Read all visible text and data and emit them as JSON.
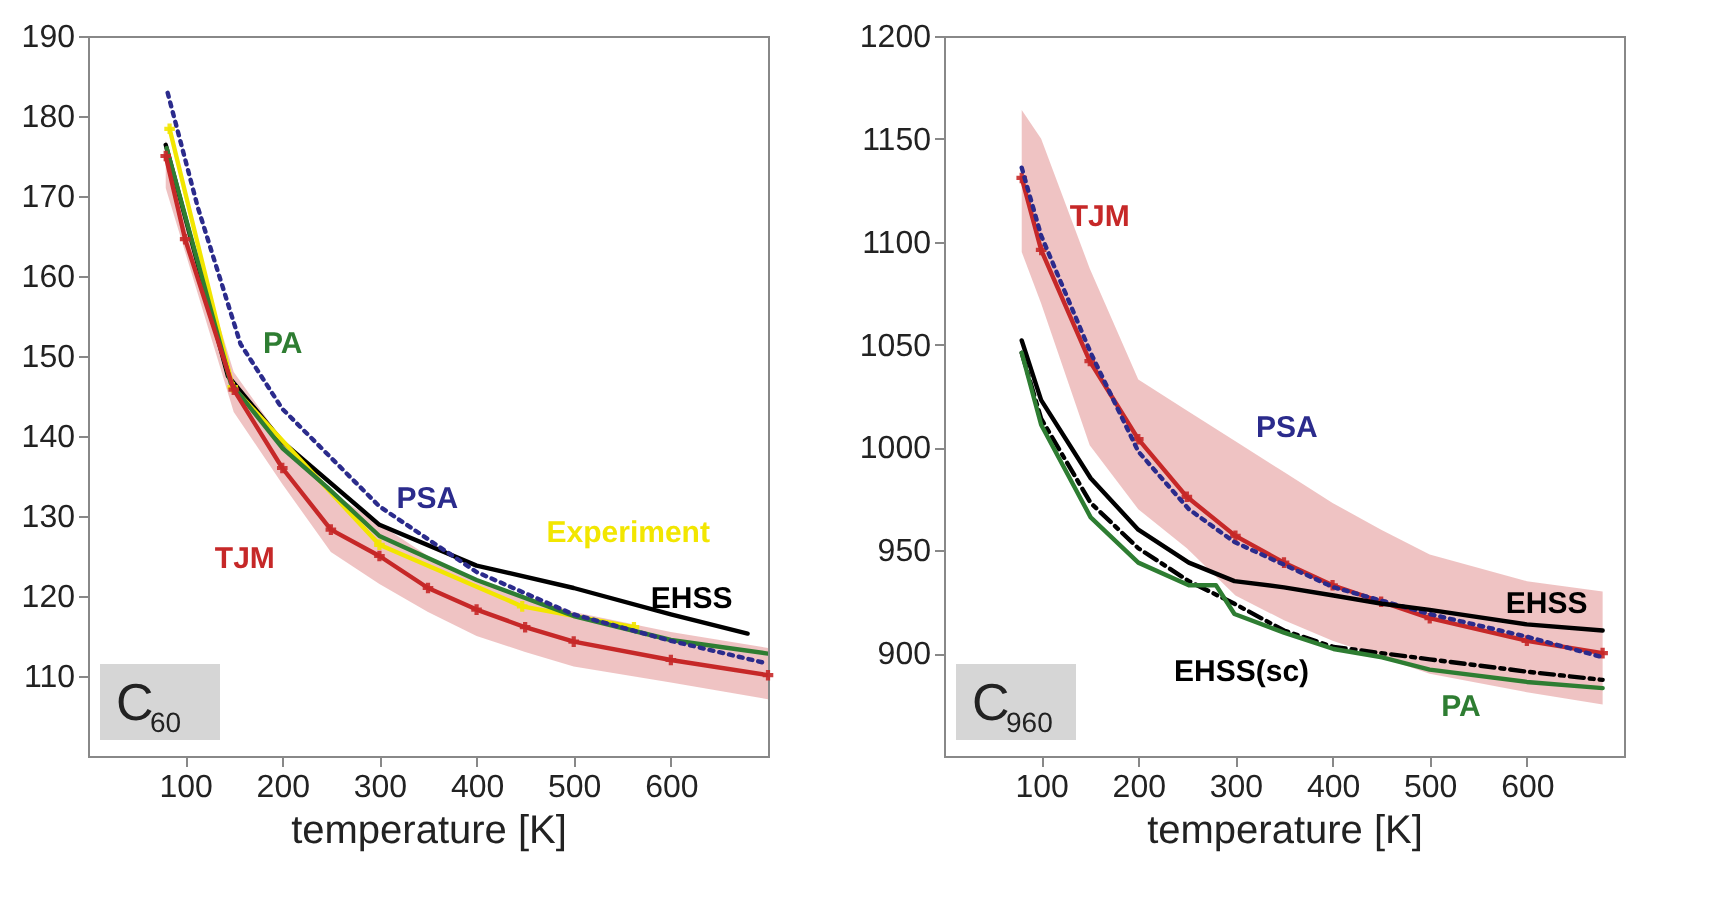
{
  "chart_data": [
    {
      "type": "line",
      "xlabel": "temperature [K]",
      "xlim": [
        0,
        700
      ],
      "xticks": [
        100,
        200,
        300,
        400,
        500,
        600
      ],
      "ylim": [
        100,
        190
      ],
      "yticks": [
        110,
        120,
        130,
        140,
        150,
        160,
        170,
        180,
        190
      ],
      "annotations": [
        "C$_{60}$"
      ],
      "series": [
        {
          "name": "EHSS",
          "color": "#000000",
          "x": [
            80,
            144,
            200,
            300,
            400,
            500,
            600,
            679
          ],
          "values": [
            176.4,
            147.5,
            139.3,
            128.9,
            123.8,
            121,
            117.7,
            115.3
          ]
        },
        {
          "name": "Experiment",
          "color": "#f2e600",
          "marker": "cross",
          "x": [
            84,
            149,
            300,
            447,
            562
          ],
          "values": [
            178.4,
            146.1,
            126.4,
            118.7,
            116.1
          ]
        },
        {
          "name": "PA",
          "color": "#2e7d32",
          "x": [
            81,
            147,
            200,
            246,
            300,
            400,
            500,
            600,
            700
          ],
          "values": [
            176,
            146.6,
            138.5,
            133.6,
            127.5,
            122,
            117.5,
            114.5,
            112.8
          ]
        },
        {
          "name": "PSA",
          "color": "#2b2b8c",
          "line_style": "dotted",
          "x": [
            82,
            113,
            157,
            200,
            300,
            400,
            500,
            600,
            698
          ],
          "values": [
            182.9,
            168.6,
            151.5,
            143.4,
            131.2,
            123,
            117.7,
            114.4,
            111.6
          ]
        },
        {
          "name": "TJM",
          "color": "#c62828",
          "marker": "cross",
          "x": [
            80,
            100,
            150,
            200,
            250,
            300,
            350,
            400,
            450,
            500,
            600,
            700
          ],
          "values": [
            175,
            164.6,
            145.8,
            136,
            128.3,
            125,
            121,
            118.3,
            116.1,
            114.3,
            112,
            110.1
          ],
          "lower": [
            171,
            163,
            143,
            134,
            125.5,
            121.5,
            118,
            115,
            113,
            111.2,
            109.2,
            107.1
          ],
          "upper": [
            177,
            168,
            148,
            139.5,
            133,
            129,
            125,
            122,
            120,
            118,
            115.5,
            113.5
          ]
        }
      ]
    },
    {
      "type": "line",
      "xlabel": "temperature [K]",
      "xlim": [
        0,
        700
      ],
      "xticks": [
        100,
        200,
        300,
        400,
        500,
        600
      ],
      "ylim": [
        850,
        1200
      ],
      "yticks": [
        900,
        950,
        1000,
        1050,
        1100,
        1150,
        1200
      ],
      "annotations": [
        "C$_{960}$"
      ],
      "series": [
        {
          "name": "TJM",
          "color": "#c62828",
          "marker": "cross",
          "x": [
            80,
            100,
            150,
            200,
            250,
            300,
            350,
            400,
            450,
            500,
            600,
            678
          ],
          "values": [
            1131,
            1096,
            1042,
            1004,
            976,
            957,
            944,
            933,
            925,
            917,
            906,
            900
          ],
          "lower": [
            1095,
            1070,
            1001,
            970,
            951,
            928,
            916,
            906,
            898,
            890,
            881,
            875
          ],
          "upper": [
            1164,
            1150,
            1087,
            1033,
            1018,
            1003,
            988,
            973,
            960,
            948,
            935,
            930
          ]
        },
        {
          "name": "PSA",
          "color": "#2b2b8c",
          "line_style": "dotted",
          "x": [
            80,
            100,
            151,
            200,
            252,
            299,
            401,
            500,
            600,
            678
          ],
          "values": [
            1136,
            1103,
            1046,
            998,
            970,
            954,
            932,
            919,
            908,
            898
          ]
        },
        {
          "name": "EHSS",
          "color": "#000000",
          "x": [
            80,
            100,
            151,
            200,
            252,
            299,
            350,
            401,
            451,
            500,
            600,
            678
          ],
          "values": [
            1052,
            1023,
            985,
            960,
            944,
            935,
            932,
            928,
            924,
            921,
            914,
            911
          ]
        },
        {
          "name": "EHSS(sc)",
          "color": "#000000",
          "line_style": "dashed",
          "x": [
            80,
            100,
            151,
            200,
            252,
            299,
            350,
            401,
            500,
            600,
            678
          ],
          "values": [
            1046,
            1014,
            973,
            951,
            935,
            924,
            911,
            903,
            897,
            891,
            887
          ]
        },
        {
          "name": "PA",
          "color": "#2e7d32",
          "x": [
            80,
            100,
            151,
            200,
            252,
            280,
            299,
            350,
            401,
            451,
            500,
            600,
            678
          ],
          "values": [
            1046,
            1011,
            966,
            944,
            933,
            933,
            919,
            910,
            902,
            898,
            892,
            886,
            883
          ]
        }
      ]
    }
  ]
}
